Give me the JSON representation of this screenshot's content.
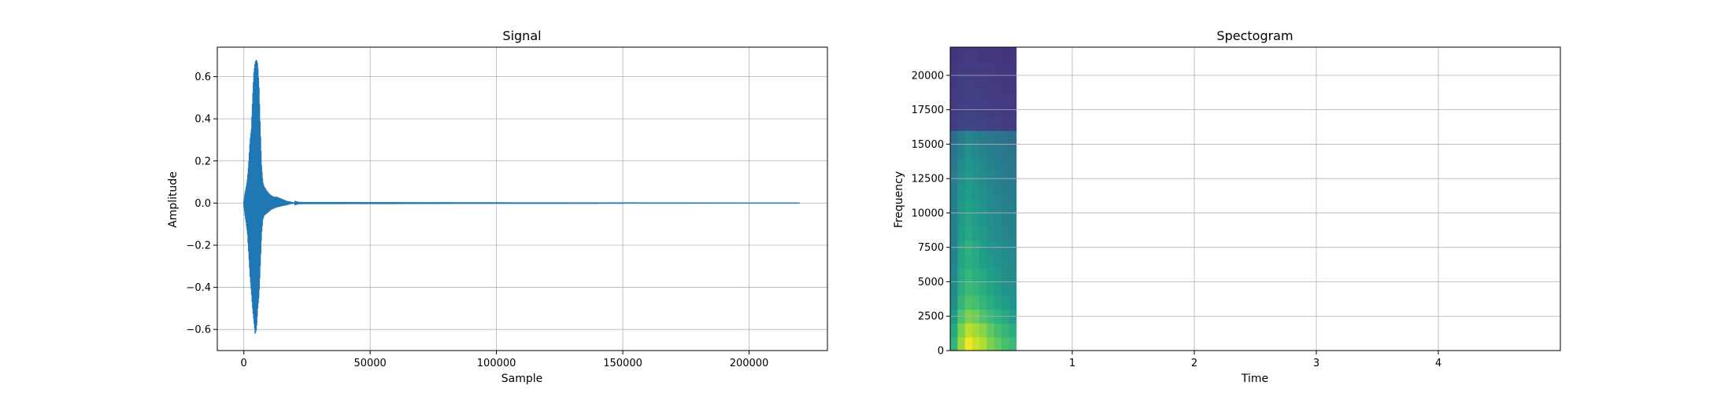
{
  "chart_data": [
    {
      "type": "line",
      "title": "Signal",
      "xlabel": "Sample",
      "ylabel": "Amplitude",
      "xlim": [
        -10500,
        231000
      ],
      "ylim": [
        -0.7,
        0.74
      ],
      "xticks": [
        0,
        50000,
        100000,
        150000,
        200000
      ],
      "xtick_labels": [
        "0",
        "50000",
        "100000",
        "150000",
        "200000"
      ],
      "yticks": [
        -0.6,
        -0.4,
        -0.2,
        0.0,
        0.2,
        0.4,
        0.6
      ],
      "ytick_labels": [
        "−0.6",
        "−0.4",
        "−0.2",
        "0.0",
        "0.2",
        "0.4",
        "0.6"
      ],
      "grid": true,
      "color": "#1f77b4",
      "series": [
        {
          "x": [
            0,
            500,
            1000,
            1500,
            2000,
            2500,
            3000,
            3500,
            4000,
            4500,
            5000,
            5500,
            6000,
            6500,
            7000,
            7500,
            8000,
            9000,
            10000,
            11000,
            12000,
            13000,
            14000,
            15000,
            16000,
            17000,
            18000,
            19000,
            20000,
            22000,
            220000
          ],
          "y_upper": [
            0.01,
            0.05,
            0.08,
            0.12,
            0.2,
            0.3,
            0.35,
            0.5,
            0.62,
            0.67,
            0.68,
            0.66,
            0.55,
            0.35,
            0.18,
            0.1,
            0.08,
            0.06,
            0.045,
            0.035,
            0.03,
            0.03,
            0.025,
            0.02,
            0.015,
            0.01,
            0.008,
            0.005,
            0.003,
            0.001,
            0.0
          ],
          "y_lower": [
            -0.01,
            -0.06,
            -0.1,
            -0.15,
            -0.25,
            -0.35,
            -0.42,
            -0.5,
            -0.56,
            -0.62,
            -0.6,
            -0.5,
            -0.44,
            -0.3,
            -0.15,
            -0.08,
            -0.06,
            -0.05,
            -0.04,
            -0.03,
            -0.025,
            -0.02,
            -0.018,
            -0.015,
            -0.012,
            -0.01,
            -0.006,
            -0.004,
            -0.002,
            -0.001,
            0.0
          ]
        }
      ]
    },
    {
      "type": "heatmap",
      "title": "Spectogram",
      "xlabel": "Time",
      "ylabel": "Frequency",
      "xlim": [
        0,
        5.0
      ],
      "ylim": [
        0,
        22050
      ],
      "xticks": [
        1,
        2,
        3,
        4
      ],
      "xtick_labels": [
        "1",
        "2",
        "3",
        "4"
      ],
      "yticks": [
        0,
        2500,
        5000,
        7500,
        10000,
        12500,
        15000,
        17500,
        20000
      ],
      "ytick_labels": [
        "0",
        "2500",
        "5000",
        "7500",
        "10000",
        "12500",
        "15000",
        "17500",
        "20000"
      ],
      "grid": true,
      "colormap": "viridis",
      "data_extent_time": [
        0,
        0.54
      ],
      "time_bins": [
        0.0,
        0.06,
        0.12,
        0.18,
        0.24,
        0.3,
        0.36,
        0.42,
        0.48
      ],
      "freq_bins": [
        0,
        1000,
        2000,
        3000,
        4000,
        5000,
        6000,
        7000,
        8000,
        9000,
        10000,
        11000,
        12000,
        13000,
        14000,
        15000,
        16000,
        17000,
        18000,
        19000,
        20000,
        21000
      ],
      "intensity": [
        [
          0.65,
          0.85,
          0.98,
          0.92,
          0.88,
          0.8,
          0.75,
          0.7,
          0.68
        ],
        [
          0.6,
          0.8,
          0.9,
          0.86,
          0.82,
          0.75,
          0.7,
          0.66,
          0.62
        ],
        [
          0.55,
          0.72,
          0.8,
          0.78,
          0.72,
          0.68,
          0.64,
          0.6,
          0.56
        ],
        [
          0.5,
          0.66,
          0.72,
          0.7,
          0.66,
          0.62,
          0.58,
          0.55,
          0.52
        ],
        [
          0.48,
          0.62,
          0.68,
          0.66,
          0.62,
          0.58,
          0.55,
          0.52,
          0.5
        ],
        [
          0.46,
          0.6,
          0.66,
          0.62,
          0.6,
          0.56,
          0.53,
          0.5,
          0.48
        ],
        [
          0.45,
          0.58,
          0.62,
          0.6,
          0.56,
          0.54,
          0.51,
          0.49,
          0.47
        ],
        [
          0.45,
          0.58,
          0.64,
          0.6,
          0.55,
          0.52,
          0.5,
          0.48,
          0.46
        ],
        [
          0.44,
          0.55,
          0.6,
          0.57,
          0.53,
          0.5,
          0.48,
          0.46,
          0.45
        ],
        [
          0.44,
          0.54,
          0.58,
          0.55,
          0.52,
          0.5,
          0.47,
          0.45,
          0.44
        ],
        [
          0.43,
          0.53,
          0.57,
          0.54,
          0.51,
          0.48,
          0.46,
          0.44,
          0.43
        ],
        [
          0.42,
          0.52,
          0.55,
          0.52,
          0.5,
          0.47,
          0.45,
          0.43,
          0.42
        ],
        [
          0.42,
          0.5,
          0.54,
          0.51,
          0.49,
          0.46,
          0.44,
          0.42,
          0.41
        ],
        [
          0.4,
          0.48,
          0.52,
          0.5,
          0.47,
          0.45,
          0.43,
          0.41,
          0.4
        ],
        [
          0.38,
          0.45,
          0.5,
          0.47,
          0.45,
          0.43,
          0.41,
          0.39,
          0.38
        ],
        [
          0.35,
          0.42,
          0.46,
          0.44,
          0.42,
          0.4,
          0.38,
          0.37,
          0.36
        ],
        [
          0.18,
          0.2,
          0.21,
          0.2,
          0.2,
          0.19,
          0.19,
          0.18,
          0.18
        ],
        [
          0.17,
          0.19,
          0.2,
          0.19,
          0.19,
          0.18,
          0.18,
          0.17,
          0.17
        ],
        [
          0.17,
          0.18,
          0.19,
          0.19,
          0.18,
          0.18,
          0.17,
          0.17,
          0.17
        ],
        [
          0.16,
          0.18,
          0.19,
          0.18,
          0.18,
          0.17,
          0.17,
          0.16,
          0.16
        ],
        [
          0.16,
          0.17,
          0.18,
          0.18,
          0.17,
          0.17,
          0.16,
          0.16,
          0.16
        ],
        [
          0.15,
          0.16,
          0.17,
          0.17,
          0.16,
          0.16,
          0.16,
          0.15,
          0.15
        ]
      ]
    }
  ]
}
